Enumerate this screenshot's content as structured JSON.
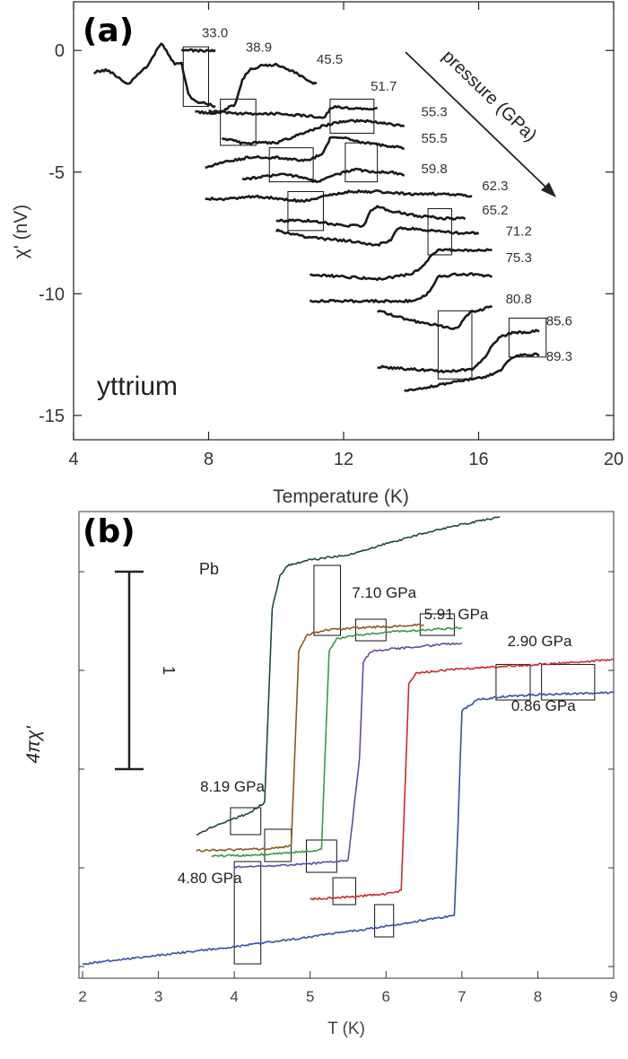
{
  "chart_data": [
    {
      "type": "line",
      "panel_label": "(a)",
      "annotation": "yttrium",
      "pressure_arrow_label": "pressure (GPa)",
      "xlabel": "Temperature (K)",
      "ylabel": "χ' (nV)",
      "xlim": [
        4,
        20
      ],
      "ylim": [
        -16,
        2
      ],
      "xticks": [
        4,
        8,
        12,
        16,
        20
      ],
      "yticks": [
        0,
        -5,
        -10,
        -15
      ],
      "color": "#1a1a1a",
      "series": [
        {
          "label": "33.0",
          "x": [
            4.6,
            5.0,
            5.6,
            6.2,
            6.6,
            7.0,
            7.2,
            7.3,
            7.4,
            7.6,
            8.0,
            8.2
          ],
          "y": [
            -0.9,
            -0.8,
            -1.4,
            -0.6,
            0.3,
            -0.6,
            -0.5,
            -1.2,
            -1.8,
            -2.1,
            -2.2,
            -2.3
          ]
        },
        {
          "label": "38.9",
          "x": [
            7.2,
            7.6,
            8.0,
            8.2
          ],
          "y": [
            0.0,
            0.0,
            0.0,
            0.0
          ]
        },
        {
          "label": "45.5",
          "x": [
            7.6,
            8.0,
            8.4,
            8.8,
            9.0,
            9.2,
            9.6,
            10.0,
            10.4,
            10.8,
            11.2
          ],
          "y": [
            -2.5,
            -2.6,
            -2.5,
            -2.2,
            -1.2,
            -0.8,
            -0.6,
            -0.6,
            -0.8,
            -1.1,
            -1.4
          ]
        },
        {
          "label": "51.7",
          "x": [
            8.0,
            9.0,
            10.0,
            11.0,
            11.4,
            11.6,
            11.8,
            12.2,
            12.6,
            13.0
          ],
          "y": [
            -2.5,
            -2.6,
            -2.6,
            -2.7,
            -2.8,
            -2.4,
            -2.3,
            -2.4,
            -2.4,
            -2.4
          ]
        },
        {
          "label": "55.3",
          "x": [
            8.4,
            9.0,
            10.0,
            10.6,
            11.0,
            11.4,
            11.7,
            12.0,
            12.6,
            13.2,
            13.8
          ],
          "y": [
            -3.6,
            -3.8,
            -3.8,
            -3.5,
            -3.3,
            -3.1,
            -3.0,
            -2.9,
            -2.9,
            -3.0,
            -3.1
          ]
        },
        {
          "label": "55.5",
          "x": [
            7.9,
            8.4,
            9.2,
            10.0,
            10.6,
            11.0,
            11.4,
            11.6,
            12.0,
            12.6,
            13.2,
            13.8
          ],
          "y": [
            -4.8,
            -4.6,
            -4.4,
            -4.4,
            -4.5,
            -4.5,
            -4.2,
            -3.6,
            -3.6,
            -3.8,
            -3.9,
            -4.0
          ]
        },
        {
          "label": "59.8",
          "x": [
            9.0,
            9.6,
            10.2,
            10.8,
            11.2,
            11.6,
            12.0,
            12.4,
            12.8,
            13.4,
            13.8
          ],
          "y": [
            -5.3,
            -5.2,
            -5.1,
            -5.2,
            -5.4,
            -5.2,
            -5.0,
            -4.9,
            -5.0,
            -5.0,
            -5.1
          ]
        },
        {
          "label": "62.3",
          "x": [
            7.9,
            8.6,
            9.4,
            10.2,
            10.8,
            11.4,
            11.8,
            12.2,
            13.0,
            14.0,
            15.0,
            15.8
          ],
          "y": [
            -6.1,
            -6.1,
            -6.0,
            -6.1,
            -6.2,
            -6.0,
            -5.9,
            -5.8,
            -5.8,
            -5.9,
            -5.9,
            -6.0
          ]
        },
        {
          "label": "65.2",
          "x": [
            10.0,
            11.0,
            12.0,
            12.6,
            12.8,
            13.0,
            13.4,
            14.2,
            15.0,
            15.6
          ],
          "y": [
            -7.0,
            -7.0,
            -7.2,
            -7.2,
            -6.6,
            -6.4,
            -6.6,
            -6.8,
            -6.9,
            -6.9
          ]
        },
        {
          "label": "71.2",
          "x": [
            10.0,
            11.0,
            12.0,
            13.0,
            13.4,
            13.6,
            13.8,
            14.6,
            15.4,
            16.0
          ],
          "y": [
            -7.4,
            -7.7,
            -7.8,
            -8.0,
            -7.8,
            -7.3,
            -7.3,
            -7.4,
            -7.5,
            -7.5
          ]
        },
        {
          "label": "75.3",
          "x": [
            11.0,
            12.0,
            13.0,
            14.0,
            14.4,
            14.6,
            14.8,
            15.4,
            16.0,
            16.4
          ],
          "y": [
            -9.2,
            -9.3,
            -9.4,
            -9.2,
            -8.8,
            -8.4,
            -8.2,
            -8.2,
            -8.2,
            -8.2
          ]
        },
        {
          "label": "80.8",
          "x": [
            11.0,
            12.0,
            13.0,
            14.0,
            14.4,
            14.6,
            14.8,
            15.4,
            16.0,
            16.4
          ],
          "y": [
            -10.3,
            -10.3,
            -10.3,
            -10.3,
            -10.1,
            -9.8,
            -9.3,
            -9.2,
            -9.2,
            -9.3
          ]
        },
        {
          "label": "85.6",
          "x": [
            13.0,
            14.0,
            14.8,
            15.2,
            15.4,
            15.6,
            15.8,
            16.0,
            16.4
          ],
          "y": [
            -10.7,
            -11.1,
            -11.3,
            -11.4,
            -11.4,
            -11.0,
            -10.7,
            -10.7,
            -10.5
          ]
        },
        {
          "label": "89.3",
          "x": [
            13.0,
            14.0,
            15.0,
            15.8,
            16.2,
            16.4,
            16.6,
            17.0,
            17.4,
            17.8
          ],
          "y": [
            -13.0,
            -13.1,
            -13.2,
            -13.1,
            -12.6,
            -12.1,
            -11.8,
            -11.6,
            -11.6,
            -11.5
          ]
        },
        {
          "label": "",
          "x": [
            13.8,
            14.6,
            15.4,
            16.2,
            16.6,
            16.8,
            17.0,
            17.4,
            17.8
          ],
          "y": [
            -14.0,
            -13.8,
            -13.6,
            -13.4,
            -13.2,
            -12.9,
            -12.6,
            -12.5,
            -12.5
          ]
        }
      ],
      "series_labels": [
        {
          "text": "33.0",
          "x": 7.8,
          "y": 0.55
        },
        {
          "text": "38.9",
          "x": 9.1,
          "y": -0.05
        },
        {
          "text": "45.5",
          "x": 11.2,
          "y": -0.55
        },
        {
          "text": "51.7",
          "x": 12.8,
          "y": -1.65
        },
        {
          "text": "55.3",
          "x": 14.3,
          "y": -2.7
        },
        {
          "text": "55.5",
          "x": 14.3,
          "y": -3.8
        },
        {
          "text": "59.8",
          "x": 14.3,
          "y": -5.05
        },
        {
          "text": "62.3",
          "x": 16.1,
          "y": -5.75
        },
        {
          "text": "65.2",
          "x": 16.1,
          "y": -6.75
        },
        {
          "text": "71.2",
          "x": 16.8,
          "y": -7.6
        },
        {
          "text": "75.3",
          "x": 16.8,
          "y": -8.7
        },
        {
          "text": "80.8",
          "x": 16.8,
          "y": -10.4
        },
        {
          "text": "85.6",
          "x": 18.0,
          "y": -11.3
        },
        {
          "text": "89.3",
          "x": 18.0,
          "y": -12.75
        }
      ],
      "boxes": [
        {
          "x0": 7.25,
          "x1": 8.0,
          "y0": -2.3,
          "y1": 0.15
        },
        {
          "x0": 8.35,
          "x1": 9.4,
          "y0": -3.9,
          "y1": -2.0
        },
        {
          "x0": 11.6,
          "x1": 12.9,
          "y0": -3.4,
          "y1": -2.0
        },
        {
          "x0": 9.8,
          "x1": 11.1,
          "y0": -5.4,
          "y1": -4.0
        },
        {
          "x0": 12.05,
          "x1": 13.0,
          "y0": -5.4,
          "y1": -3.8
        },
        {
          "x0": 10.35,
          "x1": 11.4,
          "y0": -7.4,
          "y1": -5.8
        },
        {
          "x0": 14.5,
          "x1": 15.2,
          "y0": -8.4,
          "y1": -6.5
        },
        {
          "x0": 14.8,
          "x1": 15.8,
          "y0": -13.5,
          "y1": -10.7
        },
        {
          "x0": 16.9,
          "x1": 18.0,
          "y0": -12.6,
          "y1": -11.0
        }
      ]
    },
    {
      "type": "line",
      "panel_label": "(b)",
      "annotation": "Pb",
      "scale_bar_label": "1",
      "xlabel": "T (K)",
      "ylabel": "4πχ'",
      "xlim": [
        2,
        9
      ],
      "ylim": [
        0,
        4.2
      ],
      "xticks": [
        2,
        3,
        4,
        5,
        6,
        7,
        8,
        9
      ],
      "series": [
        {
          "name": "8.19 GPa",
          "color": "#1f4d2e",
          "x": [
            3.5,
            3.8,
            4.2,
            4.4,
            4.45,
            4.5,
            4.6,
            4.7,
            5.0,
            5.5,
            6.0,
            6.5,
            7.0,
            7.5
          ],
          "y": [
            1.2,
            1.3,
            1.4,
            1.5,
            2.4,
            3.3,
            3.6,
            3.7,
            3.75,
            3.8,
            3.9,
            4.0,
            4.08,
            4.15
          ]
        },
        {
          "name": "7.10 GPa",
          "color": "#8a5a1c",
          "x": [
            3.5,
            4.0,
            4.5,
            4.75,
            4.8,
            4.85,
            4.95,
            5.2,
            5.6,
            6.0,
            6.5
          ],
          "y": [
            1.05,
            1.06,
            1.07,
            1.1,
            2.0,
            2.9,
            3.05,
            3.1,
            3.12,
            3.13,
            3.15
          ]
        },
        {
          "name": "5.91 GPa",
          "color": "#3a9a45",
          "x": [
            3.7,
            4.2,
            4.7,
            5.15,
            5.2,
            5.25,
            5.35,
            5.6,
            6.0,
            6.5,
            7.0
          ],
          "y": [
            1.0,
            1.01,
            1.03,
            1.06,
            2.0,
            2.9,
            3.02,
            3.05,
            3.08,
            3.1,
            3.12
          ]
        },
        {
          "name": "4.80 GPa",
          "color": "#5a4ea8",
          "x": [
            4.0,
            4.5,
            5.0,
            5.5,
            5.65,
            5.7,
            5.8,
            6.0,
            6.5,
            7.0
          ],
          "y": [
            0.9,
            0.91,
            0.93,
            0.96,
            1.9,
            2.8,
            2.9,
            2.92,
            2.95,
            2.98
          ]
        },
        {
          "name": "2.90 GPa",
          "color": "#cc2a2a",
          "x": [
            5.0,
            5.5,
            6.0,
            6.2,
            6.25,
            6.3,
            6.4,
            6.8,
            7.5,
            8.0,
            8.5,
            9.0
          ],
          "y": [
            0.6,
            0.62,
            0.65,
            0.68,
            1.6,
            2.6,
            2.7,
            2.73,
            2.76,
            2.78,
            2.8,
            2.83
          ]
        },
        {
          "name": "0.86 GPa",
          "color": "#3650a8",
          "x": [
            2.0,
            3.0,
            4.0,
            5.0,
            6.0,
            6.9,
            6.95,
            7.0,
            7.2,
            7.5,
            8.0,
            8.5,
            9.0
          ],
          "y": [
            0.0,
            0.08,
            0.16,
            0.25,
            0.35,
            0.45,
            1.3,
            2.35,
            2.45,
            2.48,
            2.5,
            2.51,
            2.52
          ]
        }
      ],
      "series_labels": [
        {
          "text": "8.19 GPa",
          "x": 3.55,
          "y": 1.6
        },
        {
          "text": "7.10 GPa",
          "x": 5.55,
          "y": 3.4
        },
        {
          "text": "5.91 GPa",
          "x": 6.5,
          "y": 3.2
        },
        {
          "text": "2.90 GPa",
          "x": 7.6,
          "y": 2.95
        },
        {
          "text": "0.86 GPa",
          "x": 7.65,
          "y": 2.35
        },
        {
          "text": "4.80 GPa",
          "x": 3.25,
          "y": 0.75
        }
      ],
      "boxes": [
        {
          "x0": 5.05,
          "x1": 5.4,
          "y0": 3.05,
          "y1": 3.7
        },
        {
          "x0": 5.6,
          "x1": 6.0,
          "y0": 3.0,
          "y1": 3.2
        },
        {
          "x0": 6.45,
          "x1": 6.9,
          "y0": 3.05,
          "y1": 3.25
        },
        {
          "x0": 3.95,
          "x1": 4.35,
          "y0": 1.2,
          "y1": 1.45
        },
        {
          "x0": 4.4,
          "x1": 4.75,
          "y0": 0.95,
          "y1": 1.25
        },
        {
          "x0": 4.95,
          "x1": 5.35,
          "y0": 0.85,
          "y1": 1.15
        },
        {
          "x0": 5.3,
          "x1": 5.6,
          "y0": 0.55,
          "y1": 0.8
        },
        {
          "x0": 5.85,
          "x1": 6.1,
          "y0": 0.25,
          "y1": 0.55
        },
        {
          "x0": 4.0,
          "x1": 4.35,
          "y0": 0.0,
          "y1": 0.95
        },
        {
          "x0": 7.45,
          "x1": 7.9,
          "y0": 2.45,
          "y1": 2.78
        },
        {
          "x0": 8.05,
          "x1": 8.75,
          "y0": 2.45,
          "y1": 2.78
        }
      ]
    }
  ]
}
